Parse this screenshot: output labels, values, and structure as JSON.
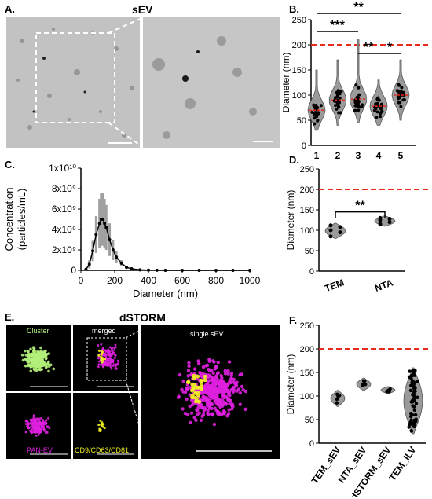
{
  "panels": {
    "A": {
      "letter": "A.",
      "title": "sEV"
    },
    "B": {
      "letter": "B."
    },
    "C": {
      "letter": "C."
    },
    "D": {
      "letter": "D."
    },
    "E": {
      "letter": "E.",
      "title": "dSTORM",
      "labels": {
        "cluster": "Cluster",
        "merged": "merged",
        "single": "single  sEV",
        "pan": "PAN-EV",
        "markers": "CD9/CD63/CD81"
      }
    },
    "F": {
      "letter": "F."
    }
  },
  "colors": {
    "red_dash": "#e8291c",
    "violin": "#9a9a9a",
    "green": "#b2f07a",
    "magenta": "#e020e0",
    "yellow": "#f0f020",
    "error_bar": "#a0a0a0"
  },
  "chart_data": [
    {
      "id": "B",
      "type": "violin",
      "categories": [
        "1",
        "2",
        "3",
        "4",
        "5"
      ],
      "ylabel": "Diameter (nm)",
      "ylim": [
        0,
        250
      ],
      "yticks": [
        "0",
        "50",
        "100",
        "150",
        "200",
        "250"
      ],
      "reference_line": 200,
      "medians": [
        70,
        90,
        92,
        78,
        100
      ],
      "significance": [
        {
          "from": "1",
          "to": "5",
          "label": "**"
        },
        {
          "from": "1",
          "to": "3",
          "label": "***"
        },
        {
          "from": "3",
          "to": "4",
          "label": "**"
        },
        {
          "from": "4",
          "to": "5",
          "label": "*"
        }
      ]
    },
    {
      "id": "C",
      "type": "scatter",
      "xlabel": "Diameter (nm)",
      "ylabel": "Concentration\n(particles/mL)",
      "xlim": [
        0,
        1000
      ],
      "ylim": [
        0,
        10000000000.0
      ],
      "xticks": [
        "0",
        "200",
        "400",
        "600",
        "800",
        "1000"
      ],
      "yticks": [
        "0",
        "2x10⁹",
        "4x10⁹",
        "6x10⁹",
        "8x10⁹",
        "1x10¹⁰"
      ],
      "x": [
        30,
        50,
        70,
        90,
        110,
        120,
        130,
        140,
        150,
        170,
        190,
        210,
        240,
        270,
        300,
        350,
        400,
        450,
        500,
        600,
        700,
        800,
        900,
        1000
      ],
      "y": [
        100000000.0,
        600000000.0,
        1900000000.0,
        3500000000.0,
        4600000000.0,
        5000000000.0,
        5000000000.0,
        4600000000.0,
        4200000000.0,
        3000000000.0,
        2000000000.0,
        1300000000.0,
        700000000.0,
        300000000.0,
        150000000.0,
        50000000.0,
        20000000.0,
        10000000.0,
        0,
        0,
        0,
        0,
        0,
        0
      ],
      "err": [
        100000000.0,
        400000000.0,
        1000000000.0,
        1800000000.0,
        2400000000.0,
        2600000000.0,
        2600000000.0,
        2400000000.0,
        2200000000.0,
        1600000000.0,
        1000000000.0,
        600000000.0,
        300000000.0,
        150000000.0,
        80000000.0,
        30000000.0,
        0,
        0,
        0,
        0,
        0,
        0,
        0,
        0
      ]
    },
    {
      "id": "D",
      "type": "violin",
      "categories": [
        "TEM",
        "NTA"
      ],
      "ylabel": "Diameter (nm)",
      "ylim": [
        0,
        250
      ],
      "yticks": [
        "0",
        "50",
        "100",
        "150",
        "200",
        "250"
      ],
      "reference_line": 200,
      "points": [
        [
          85,
          95,
          100,
          108,
          112
        ],
        [
          115,
          120,
          125,
          128,
          130
        ]
      ],
      "significance": [
        {
          "from": "TEM",
          "to": "NTA",
          "label": "**"
        }
      ]
    },
    {
      "id": "F",
      "type": "violin",
      "categories": [
        "TEM_sEV",
        "NTA_sEV",
        "dSTORM_sEV",
        "TEM_ILV"
      ],
      "ylabel": "Diameter (nm)",
      "ylim": [
        0,
        250
      ],
      "yticks": [
        "0",
        "50",
        "100",
        "150",
        "200",
        "250"
      ],
      "reference_line": 200,
      "medians": [
        97,
        125,
        112,
        95
      ]
    }
  ]
}
